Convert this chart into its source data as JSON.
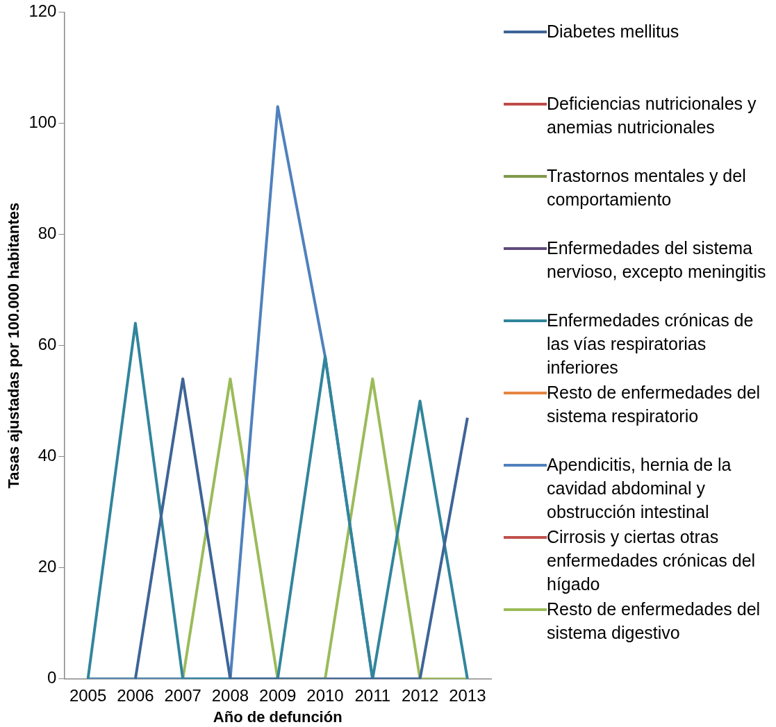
{
  "chart_data": {
    "type": "line",
    "xlabel": "Año de defunción",
    "ylabel": "Tasas ajustadas por 100.000 habitantes",
    "categories": [
      "2005",
      "2006",
      "2007",
      "2008",
      "2009",
      "2010",
      "2011",
      "2012",
      "2013"
    ],
    "ylim": [
      0,
      120
    ],
    "yticks": [
      0,
      20,
      40,
      60,
      80,
      100,
      120
    ],
    "grid": false,
    "legend": "right",
    "marker": "none",
    "line_style": "solid",
    "series": [
      {
        "name": "Diabetes mellitus",
        "color": "#3e6497",
        "values": [
          null,
          0,
          54,
          0,
          0,
          0,
          0,
          0,
          47
        ]
      },
      {
        "name": "Deficiencias nutricionales y anemias nutricionales",
        "color": "#be4b48",
        "values": [
          null,
          null,
          null,
          null,
          null,
          null,
          null,
          null,
          null
        ]
      },
      {
        "name": "Trastornos mentales y del comportamiento",
        "color": "#7f9a48",
        "values": [
          null,
          null,
          null,
          null,
          null,
          null,
          null,
          null,
          null
        ]
      },
      {
        "name": "Enfermedades del sistema nervioso, excepto meningitis",
        "color": "#604a7b",
        "values": [
          null,
          null,
          null,
          null,
          null,
          null,
          null,
          null,
          null
        ]
      },
      {
        "name": "Enfermedades crónicas de las vías respiratorias inferiores",
        "color": "#31859c",
        "values": [
          0,
          64,
          0,
          0,
          0,
          58,
          0,
          50,
          0
        ]
      },
      {
        "name": "Resto de enfermedades del sistema respiratorio",
        "color": "#e6843f",
        "values": [
          null,
          null,
          null,
          null,
          null,
          null,
          null,
          null,
          null
        ]
      },
      {
        "name": "Apendicitis, hernia de la cavidad abdominal y obstrucción intestinal",
        "color": "#4f81bd",
        "values": [
          0,
          0,
          0,
          0,
          103,
          58,
          0,
          0,
          null
        ]
      },
      {
        "name": "Cirrosis y ciertas otras enfermedades crónicas del hígado",
        "color": "#c0504d",
        "values": [
          null,
          null,
          null,
          null,
          null,
          null,
          null,
          null,
          null
        ]
      },
      {
        "name": "Resto de enfermedades del sistema digestivo",
        "color": "#9bbb59",
        "values": [
          0,
          0,
          0,
          54,
          0,
          0,
          54,
          0,
          0
        ]
      }
    ]
  }
}
